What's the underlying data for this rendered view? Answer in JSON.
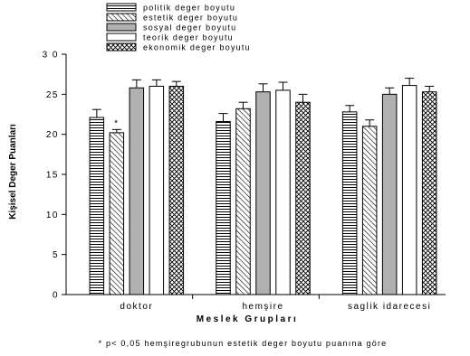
{
  "chart_data": {
    "type": "bar",
    "xlabel": "Meslek Grupları",
    "ylabel": "Kişisel Deger Puanları",
    "ylim": [
      0,
      30
    ],
    "yticks": [
      "0",
      "5",
      "10",
      "15",
      "20",
      "25",
      "3 0"
    ],
    "categories": [
      "doktor",
      "hemşire",
      "saglik idarecesi"
    ],
    "series": [
      {
        "name": "politik deger boyutu",
        "pattern": "horizontal-lines",
        "values": [
          22.1,
          21.6,
          22.8
        ],
        "errors": [
          1.0,
          1.0,
          0.8
        ]
      },
      {
        "name": "estetik deger boyutu",
        "pattern": "diagonal-lines",
        "values": [
          20.2,
          23.2,
          21.0
        ],
        "errors": [
          0.4,
          0.8,
          0.8
        ]
      },
      {
        "name": "sosyal deger boyutu",
        "pattern": "gray-fill",
        "values": [
          25.8,
          25.3,
          25.0
        ],
        "errors": [
          1.0,
          1.0,
          0.8
        ]
      },
      {
        "name": "teorik deger boyutu",
        "pattern": "white-fill",
        "values": [
          26.0,
          25.5,
          26.1
        ],
        "errors": [
          0.8,
          1.0,
          0.9
        ]
      },
      {
        "name": "ekonomik deger boyutu",
        "pattern": "crosshatch",
        "values": [
          26.0,
          24.0,
          25.3
        ],
        "errors": [
          0.6,
          1.0,
          0.7
        ]
      }
    ],
    "annotations": [
      {
        "text": "*",
        "category": "doktor",
        "series": "estetik deger boyutu"
      }
    ],
    "footnote": "* p< 0,05 hemşiregrubunun estetik deger boyutu puanına göre",
    "legend_position": "top-center",
    "grid": false
  }
}
